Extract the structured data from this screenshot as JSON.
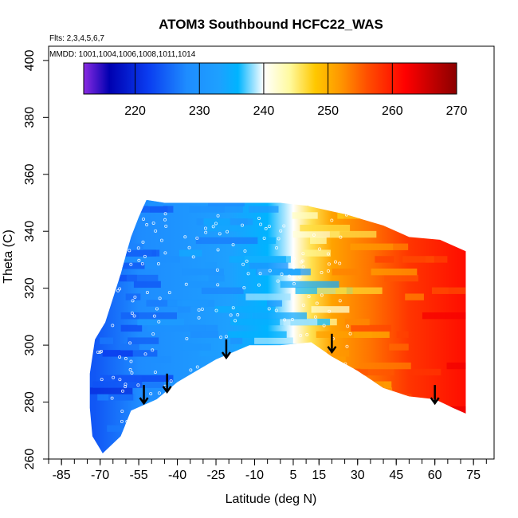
{
  "chart_data": {
    "type": "heatmap",
    "title": "ATOM3 Southbound HCFC22_WAS",
    "subtitle_flights": "Flts: 2,3,4,5,6,7",
    "subtitle_dates": "MMDD: 1001,1004,1006,1008,1011,1014",
    "xlabel": "Latitude (deg N)",
    "ylabel": "Theta (C)",
    "xlim": [
      -90,
      83
    ],
    "ylim": [
      260,
      405
    ],
    "x_ticks": [
      -85,
      -70,
      -55,
      -40,
      -25,
      -10,
      5,
      15,
      30,
      45,
      60,
      75
    ],
    "x_minor_ticks": [
      -90,
      -85,
      -80,
      -75,
      -70,
      -65,
      -60,
      -55,
      -50,
      -45,
      -40,
      -35,
      -30,
      -25,
      -20,
      -15,
      -10,
      -5,
      0,
      5,
      10,
      15,
      20,
      25,
      30,
      35,
      40,
      45,
      50,
      55,
      60,
      65,
      70,
      75,
      80
    ],
    "y_ticks": [
      260,
      280,
      300,
      320,
      340,
      360,
      380,
      400
    ],
    "colorbar": {
      "min": 212,
      "max": 270,
      "ticks": [
        220,
        230,
        240,
        250,
        260,
        270
      ],
      "colors": [
        "#8a2be2",
        "#0000b0",
        "#0a3cf0",
        "#1e8cff",
        "#1ea0ff",
        "#00b4ff",
        "#ffffff",
        "#fffaa0",
        "#ffc800",
        "#ff9600",
        "#ff5000",
        "#ff0000",
        "#8b0000"
      ],
      "color_positions": [
        212,
        216,
        222,
        228,
        233,
        236,
        240,
        244,
        248,
        252,
        256,
        262,
        270
      ]
    },
    "field_outline": {
      "top": [
        [
          -72,
          302
        ],
        [
          -68,
          308
        ],
        [
          -62,
          325
        ],
        [
          -58,
          338
        ],
        [
          -55,
          345
        ],
        [
          -52,
          351
        ],
        [
          -45,
          350
        ],
        [
          -30,
          350
        ],
        [
          -10,
          350
        ],
        [
          0,
          350
        ],
        [
          10,
          349
        ],
        [
          25,
          346
        ],
        [
          40,
          342
        ],
        [
          50,
          338
        ],
        [
          62,
          337
        ],
        [
          72,
          333
        ]
      ],
      "bottom": [
        [
          -72,
          302
        ],
        [
          -74,
          290
        ],
        [
          -74,
          278
        ],
        [
          -73,
          268
        ],
        [
          -69,
          262
        ],
        [
          -62,
          268
        ],
        [
          -58,
          277
        ],
        [
          -53,
          279
        ],
        [
          -48,
          281
        ],
        [
          -40,
          287
        ],
        [
          -25,
          295
        ],
        [
          -12,
          300
        ],
        [
          0,
          300
        ],
        [
          12,
          301
        ],
        [
          20,
          296
        ],
        [
          30,
          291
        ],
        [
          40,
          285
        ],
        [
          50,
          282
        ],
        [
          60,
          281
        ],
        [
          67,
          278
        ],
        [
          72,
          276
        ]
      ]
    },
    "gradient_stops": [
      {
        "lat": -72,
        "value": 224
      },
      {
        "lat": -55,
        "value": 228
      },
      {
        "lat": -40,
        "value": 230
      },
      {
        "lat": -20,
        "value": 233
      },
      {
        "lat": -5,
        "value": 236
      },
      {
        "lat": 5,
        "value": 240
      },
      {
        "lat": 12,
        "value": 246
      },
      {
        "lat": 20,
        "value": 251
      },
      {
        "lat": 35,
        "value": 254
      },
      {
        "lat": 50,
        "value": 258
      },
      {
        "lat": 72,
        "value": 261
      }
    ],
    "arrows": [
      {
        "lat": -53,
        "theta": 286
      },
      {
        "lat": -44,
        "theta": 290
      },
      {
        "lat": -21,
        "theta": 302
      },
      {
        "lat": 20,
        "theta": 304
      },
      {
        "lat": 60,
        "theta": 286
      }
    ]
  }
}
